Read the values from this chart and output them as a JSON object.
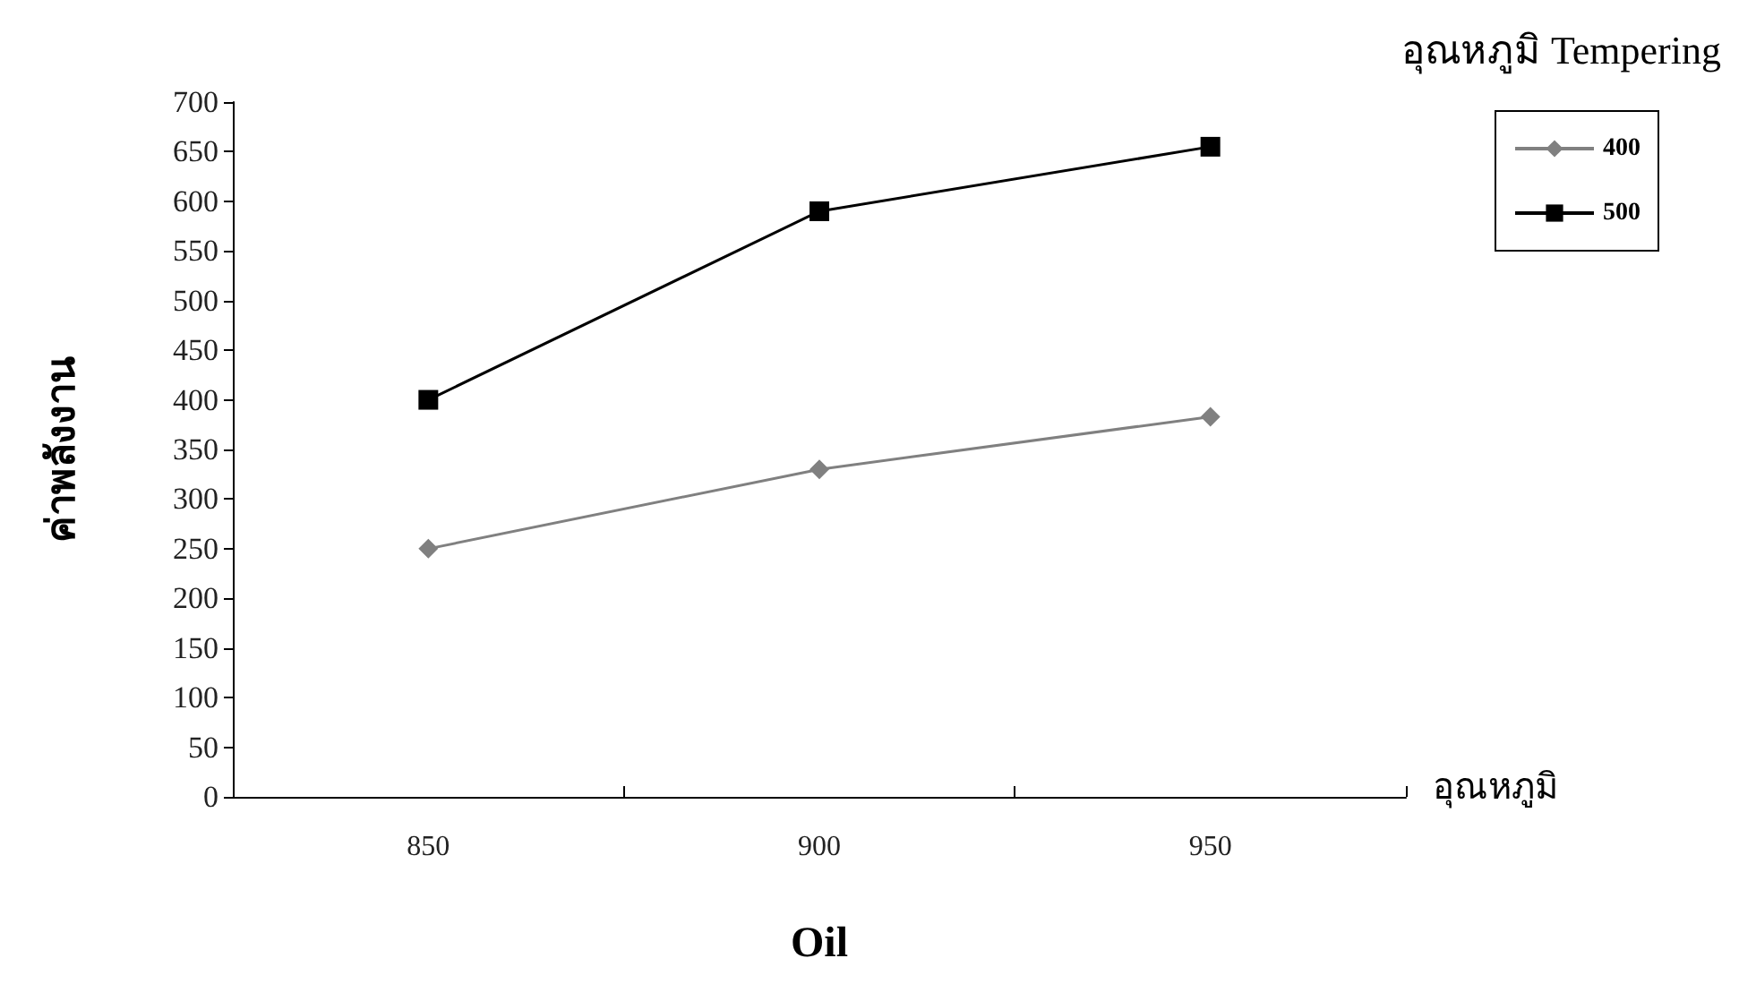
{
  "chart_data": {
    "type": "line",
    "xlabel": "Oil",
    "ylabel": "ค่าพลังงาน",
    "legend_title": "อุณหภูมิ Tempering",
    "annotations": [
      "อุณหภูมิ"
    ],
    "categories": [
      "850",
      "900",
      "950"
    ],
    "series": [
      {
        "name": "400",
        "color": "#808080",
        "marker": "diamond",
        "values": [
          250,
          330,
          383
        ]
      },
      {
        "name": "500",
        "color": "#000000",
        "marker": "square",
        "values": [
          400,
          590,
          655
        ]
      }
    ],
    "ylim": [
      0,
      700
    ],
    "yticks": [
      0,
      50,
      100,
      150,
      200,
      250,
      300,
      350,
      400,
      450,
      500,
      550,
      600,
      650,
      700
    ],
    "grid": false,
    "legend": "top right",
    "line_style": "solid"
  }
}
